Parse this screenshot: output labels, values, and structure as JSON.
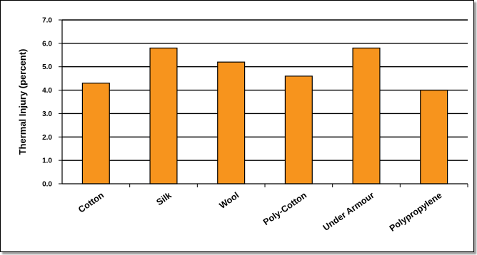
{
  "chart_data": {
    "type": "bar",
    "title": "",
    "xlabel": "",
    "ylabel": "Thermal Injury (percent)",
    "categories": [
      "Cotton",
      "Silk",
      "Wool",
      "Poly-Cotton",
      "Under Armour",
      "Polypropylene"
    ],
    "values": [
      4.3,
      5.8,
      5.2,
      4.6,
      5.8,
      4.0
    ],
    "ylim": [
      0,
      7
    ],
    "yticks": [
      "0.0",
      "1.0",
      "2.0",
      "3.0",
      "4.0",
      "5.0",
      "6.0",
      "7.0"
    ],
    "grid": true,
    "bar_color": "#F7941D"
  }
}
